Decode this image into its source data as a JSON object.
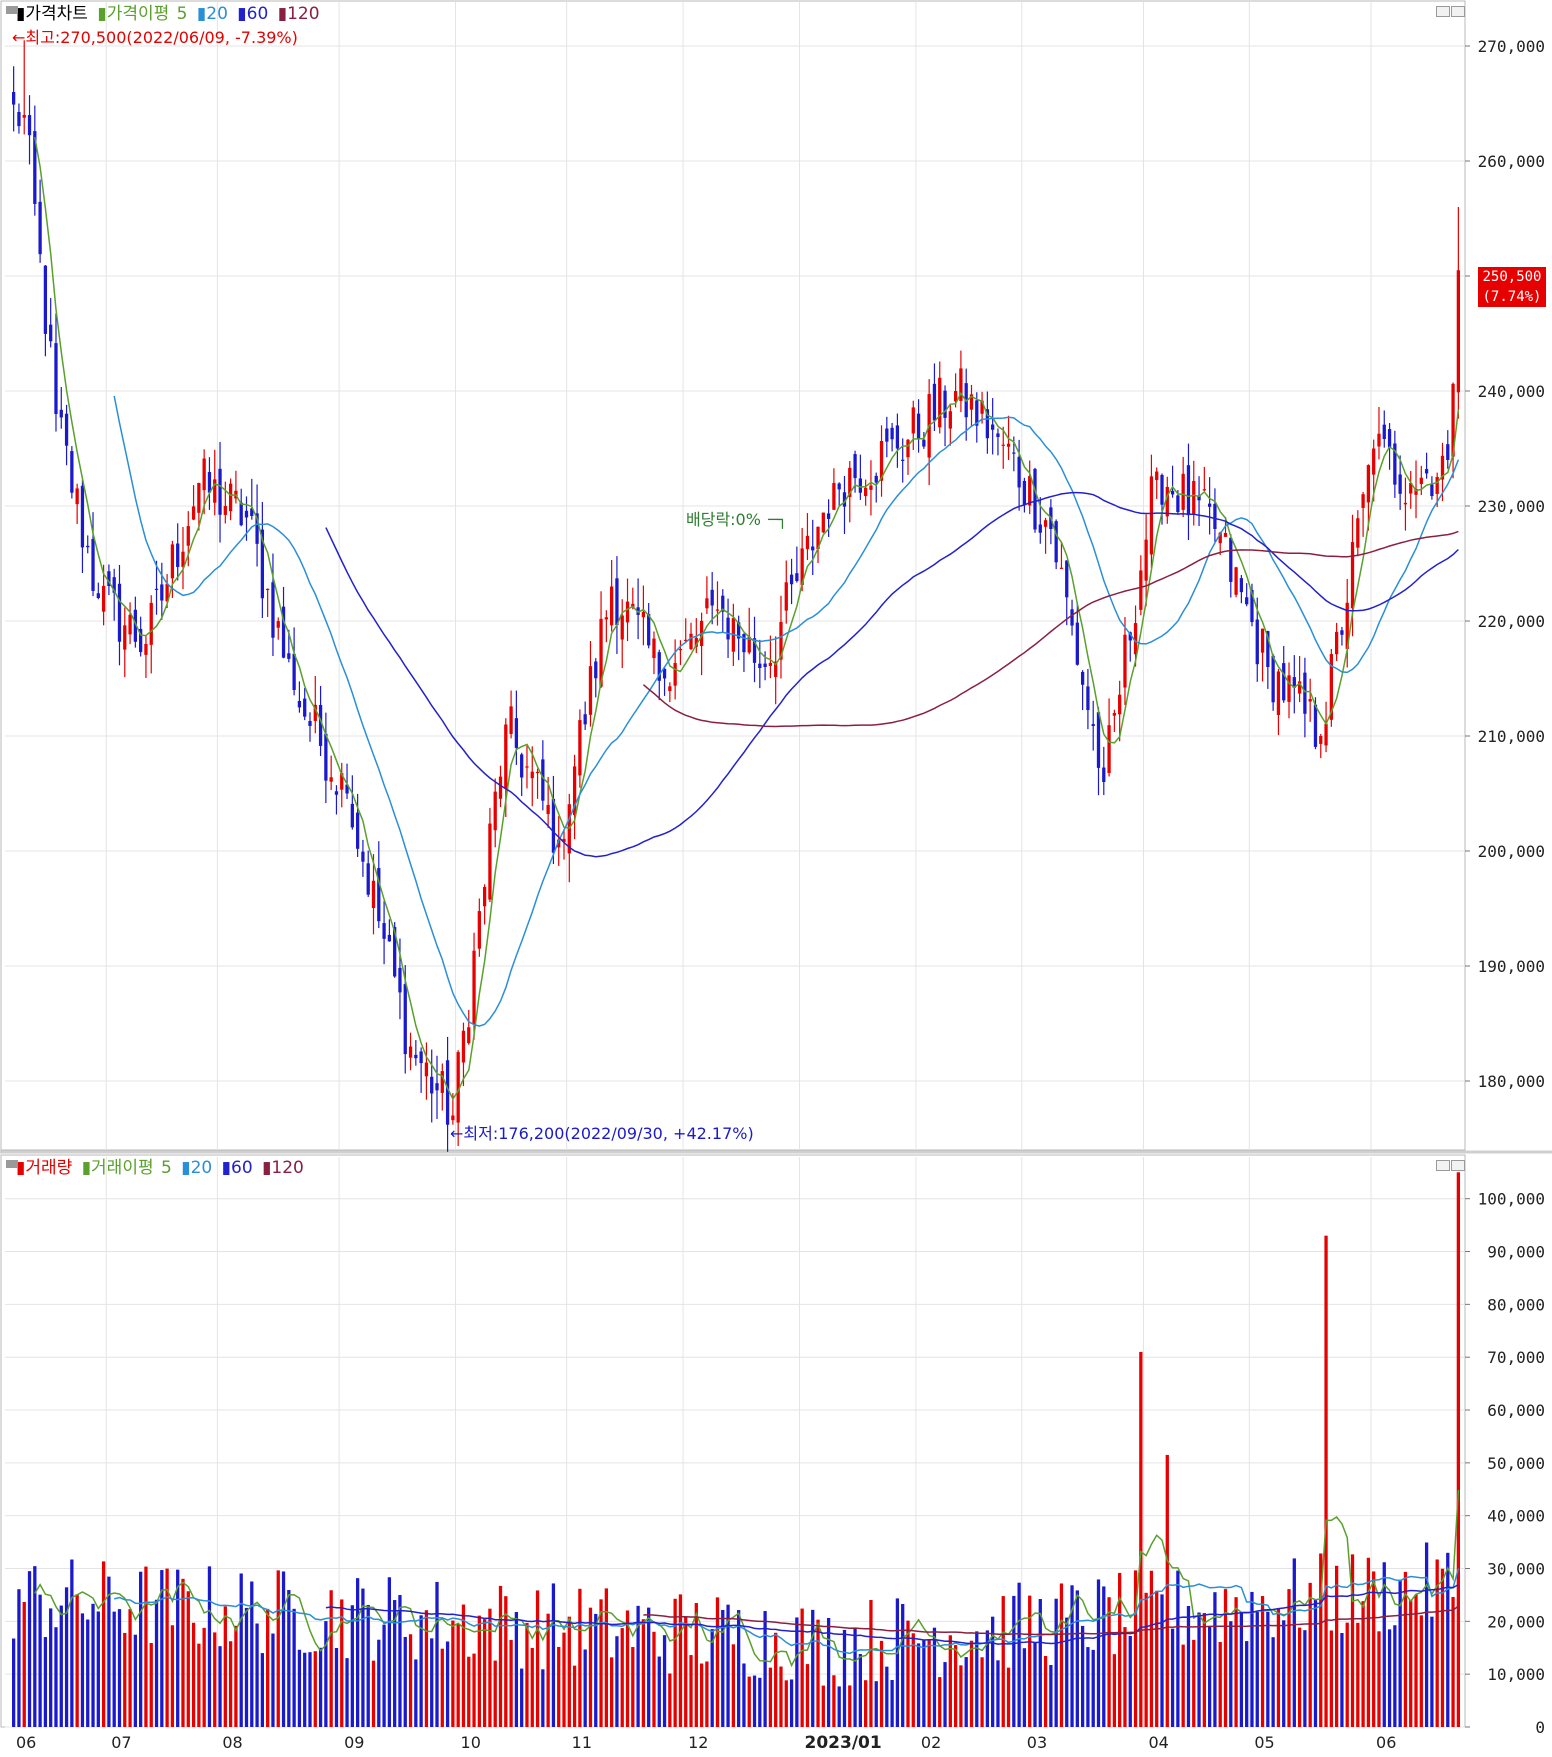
{
  "price_panel": {
    "legend": {
      "title": "가격차트",
      "ma_label": "가격이평",
      "ma5": "5",
      "ma20": "20",
      "ma60": "60",
      "ma120": "120"
    },
    "high_note": "←최고:270,500(2022/06/09, -7.39%)",
    "low_note": "←최저:176,200(2022/09/30, +42.17%)",
    "dividend_note": "배당락:0%",
    "current_price": "250,500",
    "current_change": "(7.74%)",
    "y_ticks": [
      "270,000",
      "260,000",
      "250,000",
      "240,000",
      "230,000",
      "220,000",
      "210,000",
      "200,000",
      "190,000",
      "180,000"
    ]
  },
  "volume_panel": {
    "legend": {
      "title": "거래량",
      "ma_label": "거래이평",
      "ma5": "5",
      "ma20": "20",
      "ma60": "60",
      "ma120": "120"
    },
    "y_ticks": [
      "100,000",
      "90,000",
      "80,000",
      "70,000",
      "60,000",
      "50,000",
      "40,000",
      "30,000",
      "20,000",
      "10,000",
      "0"
    ]
  },
  "x_ticks": [
    "06",
    "07",
    "08",
    "09",
    "10",
    "11",
    "12",
    "2023/01",
    "02",
    "03",
    "04",
    "05",
    "06"
  ],
  "colors": {
    "up": "#e60000",
    "down": "#1a1acc",
    "ma5": "#5aa02c",
    "ma20": "#2b8fd6",
    "ma60": "#2222cc",
    "ma120": "#8a2040",
    "grid": "#e4e4e4"
  },
  "chart_data": {
    "type": "candlestick",
    "title": "가격차트",
    "ylim": [
      174000,
      274000
    ],
    "months": [
      "06",
      "07",
      "08",
      "09",
      "10",
      "11",
      "12",
      "2023/01",
      "02",
      "03",
      "04",
      "05",
      "06"
    ],
    "anchor_closes": [
      {
        "date": "2022/06/09",
        "value": 264000
      },
      {
        "date": "2022/06/17",
        "value": 238000
      },
      {
        "date": "2022/06/29",
        "value": 222000
      },
      {
        "date": "2022/07/12",
        "value": 218000
      },
      {
        "date": "2022/07/26",
        "value": 232000
      },
      {
        "date": "2022/08/08",
        "value": 229000
      },
      {
        "date": "2022/08/19",
        "value": 214000
      },
      {
        "date": "2022/09/02",
        "value": 205000
      },
      {
        "date": "2022/09/20",
        "value": 183000
      },
      {
        "date": "2022/09/30",
        "value": 177000
      },
      {
        "date": "2022/10/14",
        "value": 211000
      },
      {
        "date": "2022/10/28",
        "value": 201000
      },
      {
        "date": "2022/11/11",
        "value": 223000
      },
      {
        "date": "2022/11/25",
        "value": 215000
      },
      {
        "date": "2022/12/09",
        "value": 221000
      },
      {
        "date": "2022/12/22",
        "value": 216000
      },
      {
        "date": "2023/01/10",
        "value": 232000
      },
      {
        "date": "2023/01/26",
        "value": 235000
      },
      {
        "date": "2023/02/10",
        "value": 240000
      },
      {
        "date": "2023/02/22",
        "value": 236000
      },
      {
        "date": "2023/03/08",
        "value": 228000
      },
      {
        "date": "2023/03/22",
        "value": 206000
      },
      {
        "date": "2023/04/05",
        "value": 233000
      },
      {
        "date": "2023/04/20",
        "value": 228000
      },
      {
        "date": "2023/05/04",
        "value": 216000
      },
      {
        "date": "2023/05/18",
        "value": 210000
      },
      {
        "date": "2023/06/01",
        "value": 235000
      },
      {
        "date": "2023/06/12",
        "value": 232000
      },
      {
        "date": "2023/06/21",
        "value": 234000
      },
      {
        "date": "2023/06/23",
        "value": 250500
      }
    ],
    "volume": {
      "ylim": [
        0,
        106000
      ],
      "spikes": [
        {
          "date": "2023/03/31",
          "value": 71000
        },
        {
          "date": "2023/04/07",
          "value": 51500
        },
        {
          "date": "2023/05/19",
          "value": 93000
        },
        {
          "date": "2023/06/23",
          "value": 105000
        }
      ]
    }
  }
}
